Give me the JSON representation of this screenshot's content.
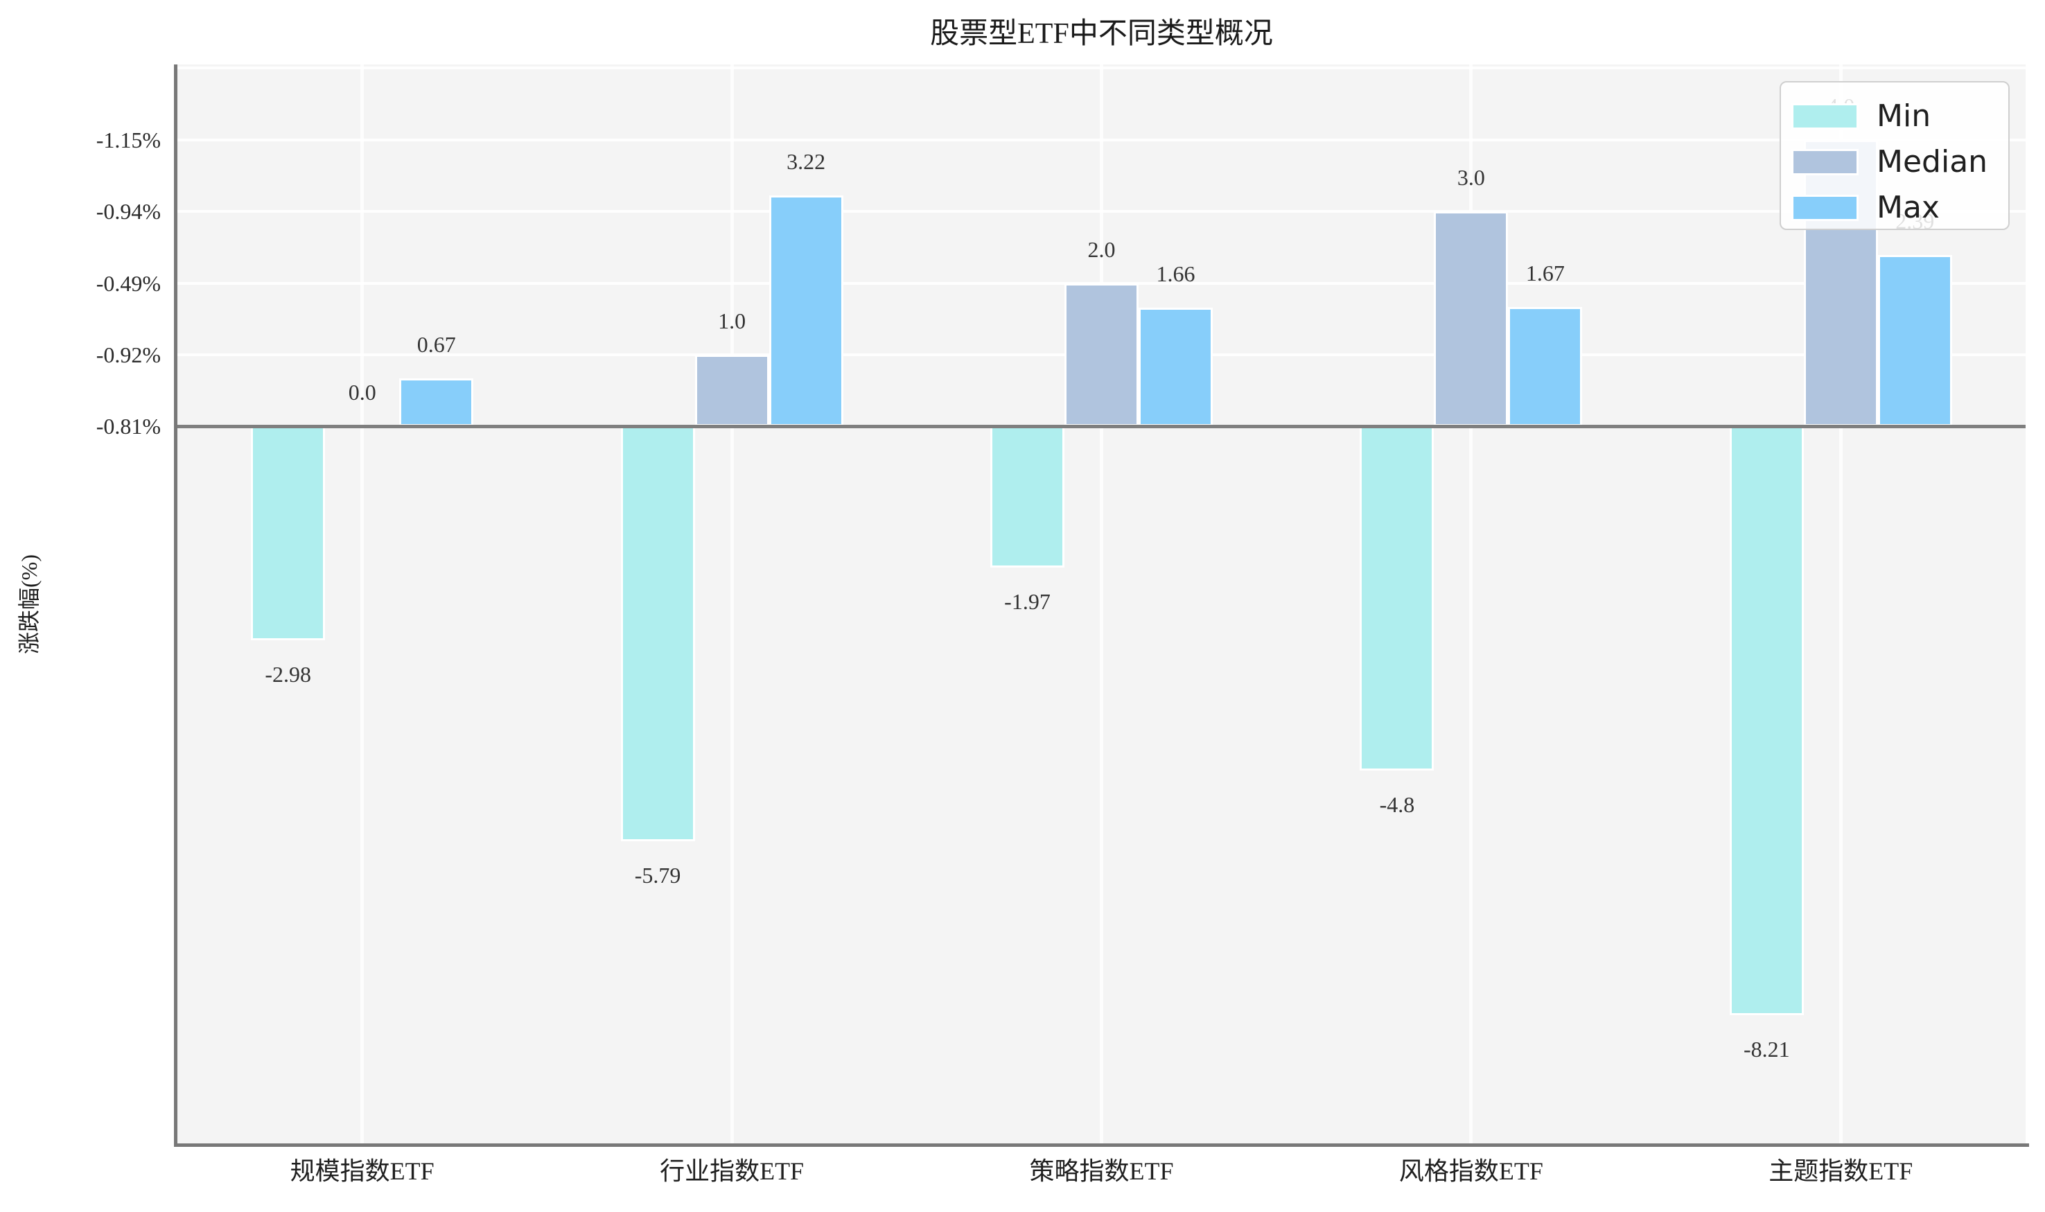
{
  "title": "股票型ETF中不同类型概况",
  "y_axis_title": "涨跌幅(%)",
  "legend": {
    "items": [
      {
        "label": "Min",
        "color": "#AFEEEE"
      },
      {
        "label": "Median",
        "color": "#B0C4DE"
      },
      {
        "label": "Max",
        "color": "#87CEFA"
      }
    ],
    "position": "upper right"
  },
  "chart_data": {
    "type": "bar",
    "title": "股票型ETF中不同类型概况",
    "ylabel": "涨跌幅(%)",
    "categories": [
      "规模指数ETF",
      "行业指数ETF",
      "策略指数ETF",
      "风格指数ETF",
      "主题指数ETF"
    ],
    "series": [
      {
        "name": "Min",
        "color": "#AFEEEE",
        "values": [
          -2.98,
          -5.79,
          -1.97,
          -4.8,
          -8.21
        ],
        "labels": [
          "-2.98",
          "-5.79",
          "-1.97",
          "-4.8",
          "-8.21"
        ]
      },
      {
        "name": "Median",
        "color": "#B0C4DE",
        "values": [
          0.0,
          1.0,
          2.0,
          3.0,
          4.0
        ],
        "labels": [
          "0.0",
          "1.0",
          "2.0",
          "3.0",
          "4.0"
        ]
      },
      {
        "name": "Max",
        "color": "#87CEFA",
        "values": [
          0.67,
          3.22,
          1.66,
          1.67,
          2.39
        ],
        "labels": [
          "0.67",
          "3.22",
          "1.66",
          "1.67",
          "2.39"
        ]
      }
    ],
    "ytick_values": [
      0,
      1,
      2,
      3,
      4
    ],
    "ytick_labels_bottom_to_top": [
      "-0.81%",
      "-0.92%",
      "-0.49%",
      "-0.94%",
      "-1.15%"
    ],
    "ylim": [
      -10.0,
      5.05
    ],
    "grid": true,
    "zero_line": true,
    "background_color": "#f4f4f4",
    "legend_position": "upper right"
  }
}
